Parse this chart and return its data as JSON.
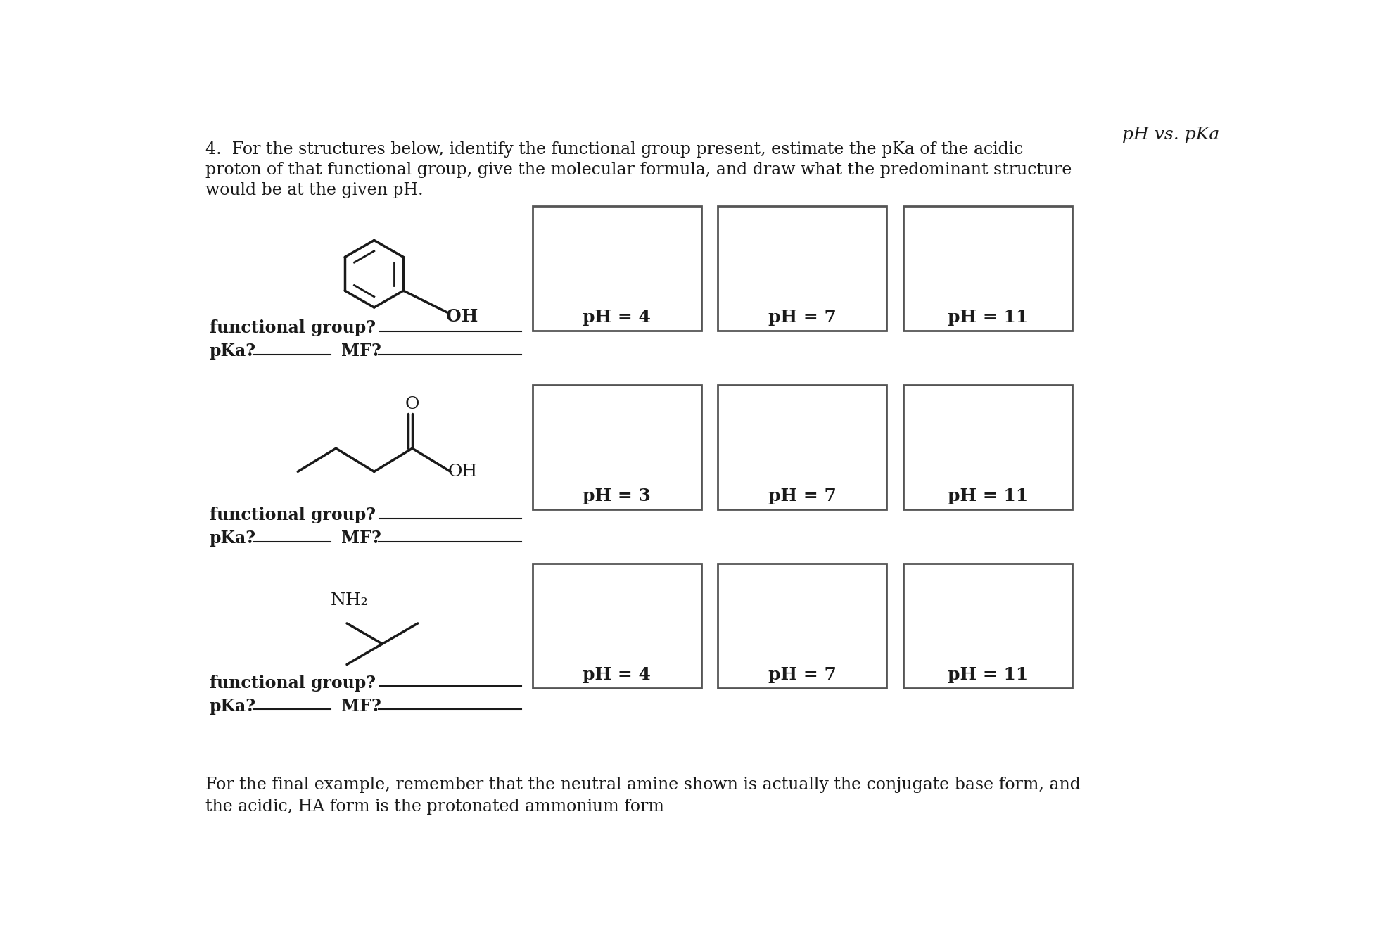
{
  "title": "pH vs. pKa",
  "intro_line1": "4.  For the structures below, identify the functional group present, estimate the pKa of the acidic",
  "intro_line2": "proton of that functional group, give the molecular formula, and draw what the predominant structure",
  "intro_line3": "would be at the given pH.",
  "footer_line1": "For the final example, remember that the neutral amine shown is actually the conjugate base form, and",
  "footer_line2": "the acidic, HA form is the protonated ammonium form",
  "rows": [
    {
      "pH_labels": [
        "pH = 4",
        "pH = 7",
        "pH = 11"
      ]
    },
    {
      "pH_labels": [
        "pH = 3",
        "pH = 7",
        "pH = 11"
      ]
    },
    {
      "pH_labels": [
        "pH = 4",
        "pH = 7",
        "pH = 11"
      ]
    }
  ],
  "fg_label": "functional group?",
  "pka_label": "pKa?",
  "mf_label": "MF?",
  "bg_color": "#ffffff",
  "text_color": "#1a1a1a",
  "box_edge_color": "#555555",
  "line_color": "#1a1a1a",
  "title_fontsize": 18,
  "body_fontsize": 17,
  "label_fontsize": 17,
  "ph_fontsize": 18,
  "mol_fontsize": 18
}
